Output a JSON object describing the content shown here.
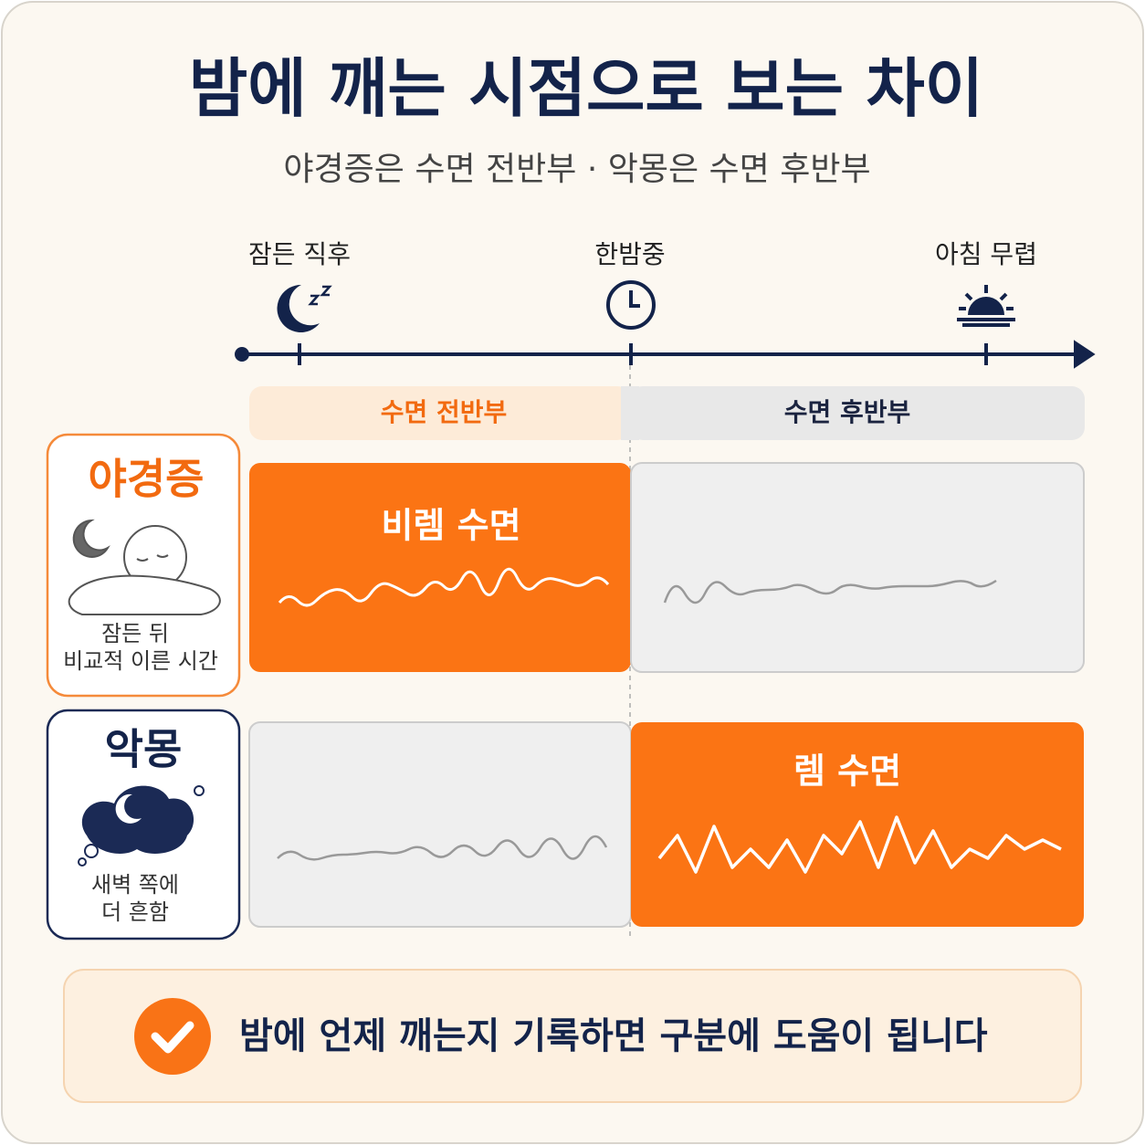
{
  "header": {
    "title": "밤에 깨는 시점으로 보는 차이",
    "subtitle": "야경증은 수면 전반부 · 악몽은 수면 후반부"
  },
  "timeline": {
    "labels": [
      "잠든 직후",
      "한밤중",
      "아침 무렵"
    ]
  },
  "phases": [
    "수면 전반부",
    "수면 후반부"
  ],
  "rows": [
    {
      "name": "야경증",
      "note": [
        "잠든 뒤",
        "비교적 이른 시간"
      ],
      "cell": "비렘 수면"
    },
    {
      "name": "악몽",
      "note": [
        "새벽 쪽에",
        "더 흔함"
      ],
      "cell": "렘 수면"
    }
  ],
  "footer": "밤에 언제 깨는지 기록하면 구분에 도움이 됩니다"
}
